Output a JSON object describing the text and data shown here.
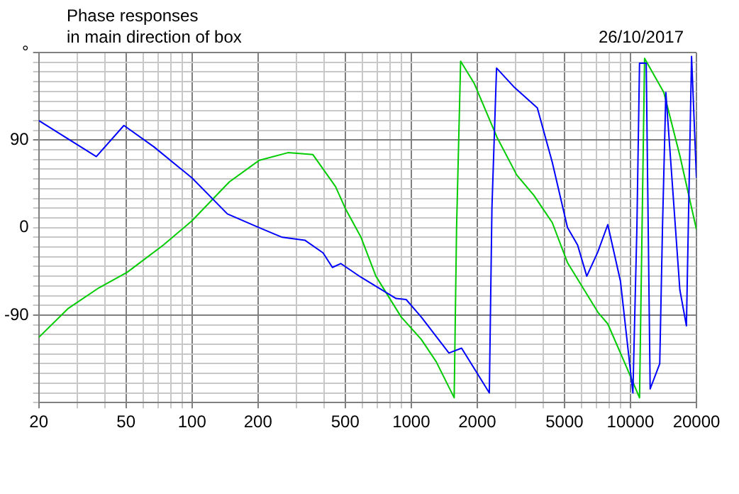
{
  "chart_data": {
    "type": "line",
    "title": "Phase responses",
    "subtitle": "in main direction of box",
    "annotations": [
      "26/10/2017"
    ],
    "log": "x",
    "grid": true,
    "marker": "none",
    "line_style": "solid",
    "xlim": [
      20,
      20000
    ],
    "xticks": [
      20,
      {
        "value": 30,
        "label": null
      },
      {
        "value": 40,
        "label": null
      },
      50,
      {
        "value": 60,
        "label": null
      },
      {
        "value": 70,
        "label": null
      },
      {
        "value": 80,
        "label": null
      },
      {
        "value": 90,
        "label": null
      },
      100,
      200,
      {
        "value": 300,
        "label": null
      },
      {
        "value": 400,
        "label": null
      },
      500,
      {
        "value": 600,
        "label": null
      },
      {
        "value": 700,
        "label": null
      },
      {
        "value": 800,
        "label": null
      },
      {
        "value": 900,
        "label": null
      },
      1000,
      2000,
      {
        "value": 3000,
        "label": null
      },
      {
        "value": 4000,
        "label": null
      },
      5000,
      {
        "value": 6000,
        "label": null
      },
      {
        "value": 7000,
        "label": null
      },
      {
        "value": 8000,
        "label": null
      },
      {
        "value": 9000,
        "label": null
      },
      10000,
      20000
    ],
    "ylim": [
      -180,
      180
    ],
    "yticks": [
      {
        "value": -180,
        "label": null
      },
      {
        "value": -170,
        "label": null
      },
      {
        "value": -160,
        "label": null
      },
      {
        "value": -150,
        "label": null
      },
      {
        "value": -140,
        "label": null
      },
      {
        "value": -130,
        "label": null
      },
      {
        "value": -120,
        "label": null
      },
      {
        "value": -110,
        "label": null
      },
      {
        "value": -100,
        "label": null
      },
      -90,
      {
        "value": -80,
        "label": null
      },
      {
        "value": -70,
        "label": null
      },
      {
        "value": -60,
        "label": null
      },
      {
        "value": -50,
        "label": null
      },
      {
        "value": -40,
        "label": null
      },
      {
        "value": -30,
        "label": null
      },
      {
        "value": -20,
        "label": null
      },
      {
        "value": -10,
        "label": null
      },
      0,
      {
        "value": 10,
        "label": null
      },
      {
        "value": 20,
        "label": null
      },
      {
        "value": 30,
        "label": null
      },
      {
        "value": 40,
        "label": null
      },
      {
        "value": 50,
        "label": null
      },
      {
        "value": 60,
        "label": null
      },
      {
        "value": 70,
        "label": null
      },
      {
        "value": 80,
        "label": null
      },
      90,
      {
        "value": 100,
        "label": null
      },
      {
        "value": 110,
        "label": null
      },
      {
        "value": 120,
        "label": null
      },
      {
        "value": 130,
        "label": null
      },
      {
        "value": 140,
        "label": null
      },
      {
        "value": 150,
        "label": null
      },
      {
        "value": 160,
        "label": null
      },
      {
        "value": 170,
        "label": null
      },
      {
        "value": 180,
        "label": "°"
      }
    ],
    "series": [
      {
        "color": "#0000ff",
        "x": [
          20,
          36.6,
          48.9,
          67,
          100,
          145,
          202,
          258,
          327,
          396,
          437,
          477,
          589,
          853,
          948,
          1111,
          1486,
          1697,
          2271,
          2334,
          2450,
          2960,
          3760,
          4400,
          5160,
          5740,
          6320,
          7100,
          7880,
          9000,
          10260,
          10700,
          11000,
          11800,
          12300,
          13600,
          14000,
          14500,
          16800,
          18000,
          19000,
          20000
        ],
        "values": [
          110,
          73,
          105,
          83,
          51,
          14,
          0,
          -10,
          -13,
          -26,
          -41,
          -37,
          -51,
          -73,
          -74,
          -92,
          -129,
          -124,
          -170,
          20,
          164,
          144,
          123,
          67,
          0,
          -18,
          -50,
          -25,
          3,
          -55,
          -170,
          0,
          169,
          169,
          -166,
          -140,
          0,
          139,
          -64,
          -101,
          176,
          51
        ]
      },
      {
        "color": "#00cc00",
        "x": [
          20,
          27.3,
          37.6,
          50.6,
          74,
          100,
          148,
          202,
          274,
          356,
          452,
          502,
          590,
          690,
          900,
          1111,
          1300,
          1570,
          1610,
          1680,
          1940,
          2460,
          3030,
          3630,
          4400,
          5160,
          7100,
          7880,
          9450,
          11000,
          11600,
          14200,
          16800,
          20000
        ],
        "values": [
          -113,
          -83,
          -62,
          -46,
          -18,
          7,
          47,
          69,
          77,
          75,
          42,
          19,
          -10,
          -50,
          -92,
          -115,
          -138,
          -175,
          0,
          171,
          148,
          93,
          54,
          33,
          5,
          -36,
          -87,
          -99,
          -140,
          -175,
          174,
          139,
          74,
          -2
        ]
      }
    ]
  }
}
